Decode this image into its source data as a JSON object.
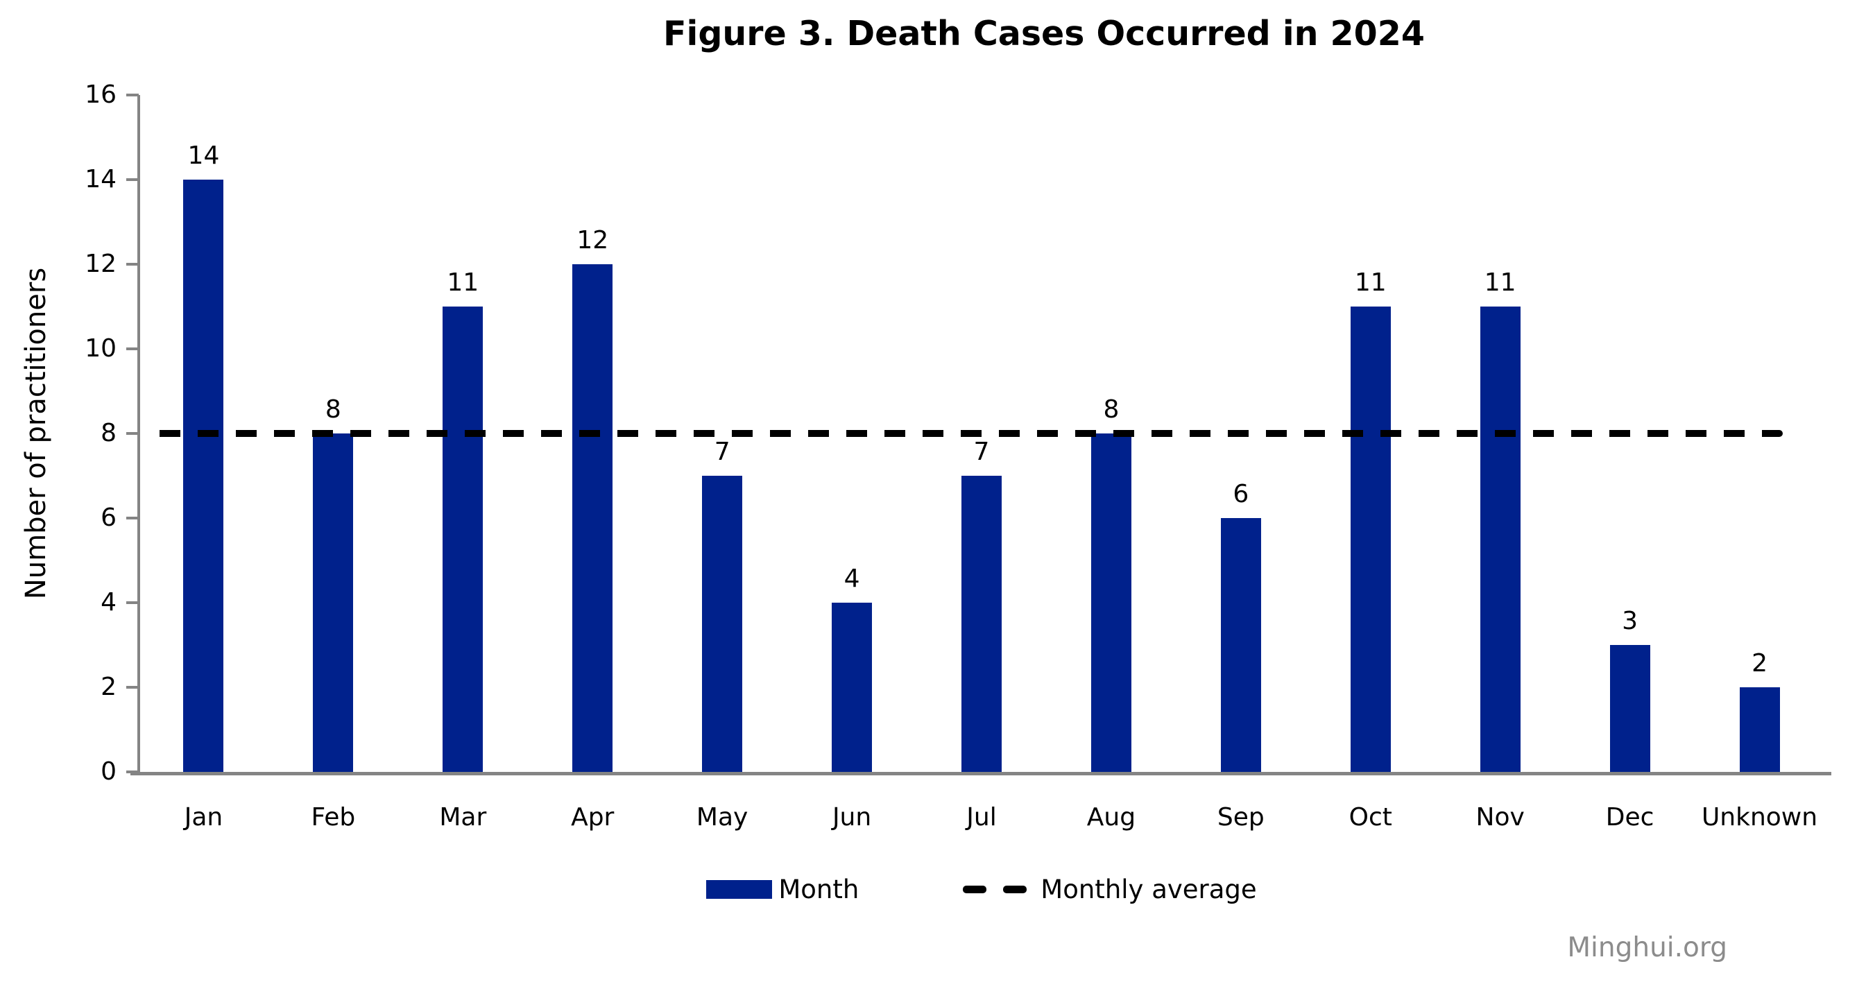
{
  "chart_data": {
    "type": "bar",
    "title": "Figure 3. Death Cases Occurred in 2024",
    "xlabel": "",
    "ylabel": "Number of practitioners",
    "categories": [
      "Jan",
      "Feb",
      "Mar",
      "Apr",
      "May",
      "Jun",
      "Jul",
      "Aug",
      "Sep",
      "Oct",
      "Nov",
      "Dec",
      "Unknown"
    ],
    "values": [
      14,
      8,
      11,
      12,
      7,
      4,
      7,
      8,
      6,
      11,
      11,
      3,
      2
    ],
    "average_line": 8,
    "ylim": [
      0,
      16
    ],
    "ytick_step": 2,
    "grid": false,
    "legend_position": "bottom-center",
    "bar_color": "#00218c",
    "axis_color": "#848484",
    "average_line_color": "#000000",
    "legend": [
      {
        "swatch": "bar",
        "label": "Month"
      },
      {
        "swatch": "dashed-line",
        "label": "Monthly average"
      }
    ]
  },
  "footer": {
    "watermark": "Minghui.org"
  }
}
